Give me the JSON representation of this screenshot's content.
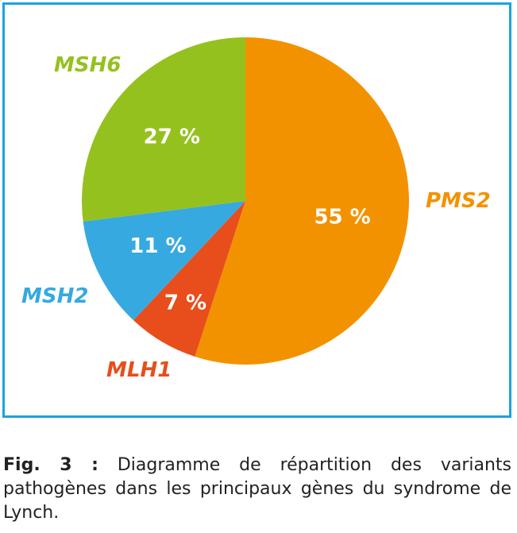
{
  "chart_data": {
    "type": "pie",
    "title": "",
    "slices": [
      {
        "label": "PMS2",
        "value": 55,
        "value_label": "55 %",
        "color": "#f39200"
      },
      {
        "label": "MLH1",
        "value": 7,
        "value_label": "7 %",
        "color": "#e84e1b"
      },
      {
        "label": "MSH2",
        "value": 11,
        "value_label": "11 %",
        "color": "#36a9e1"
      },
      {
        "label": "MSH6",
        "value": 27,
        "value_label": "27 %",
        "color": "#95c11f"
      }
    ],
    "start": "top",
    "direction": "clockwise",
    "border_color": "#1ba3dd"
  },
  "caption": {
    "label": "Fig. 3 :",
    "text": " Diagramme de répartition des variants pathogènes dans les principaux gènes du syndrome de Lynch."
  }
}
